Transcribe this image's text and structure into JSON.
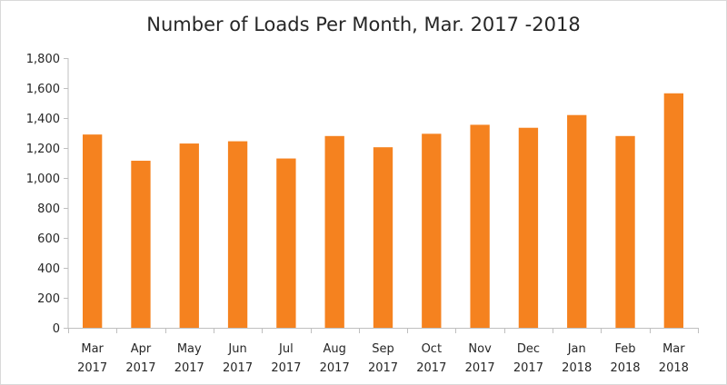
{
  "chart_data": {
    "type": "bar",
    "title": "Number of Loads Per Month, Mar. 2017 -2018",
    "xlabel": "",
    "ylabel": "",
    "ylim": [
      0,
      1800
    ],
    "yticks": [
      "0",
      "200",
      "400",
      "600",
      "800",
      "1,000",
      "1,200",
      "1,400",
      "1,600",
      "1,800"
    ],
    "ytick_values": [
      0,
      200,
      400,
      600,
      800,
      1000,
      1200,
      1400,
      1600,
      1800
    ],
    "categories": [
      [
        "Mar",
        "2017"
      ],
      [
        "Apr",
        "2017"
      ],
      [
        "May",
        "2017"
      ],
      [
        "Jun",
        "2017"
      ],
      [
        "Jul",
        "2017"
      ],
      [
        "Aug",
        "2017"
      ],
      [
        "Sep",
        "2017"
      ],
      [
        "Oct",
        "2017"
      ],
      [
        "Nov",
        "2017"
      ],
      [
        "Dec",
        "2017"
      ],
      [
        "Jan",
        "2018"
      ],
      [
        "Feb",
        "2018"
      ],
      [
        "Mar",
        "2018"
      ]
    ],
    "values": [
      1290,
      1115,
      1230,
      1245,
      1130,
      1280,
      1205,
      1295,
      1355,
      1335,
      1420,
      1280,
      1565
    ],
    "bar_color": "#f5821f",
    "grid": false,
    "legend": "none"
  }
}
